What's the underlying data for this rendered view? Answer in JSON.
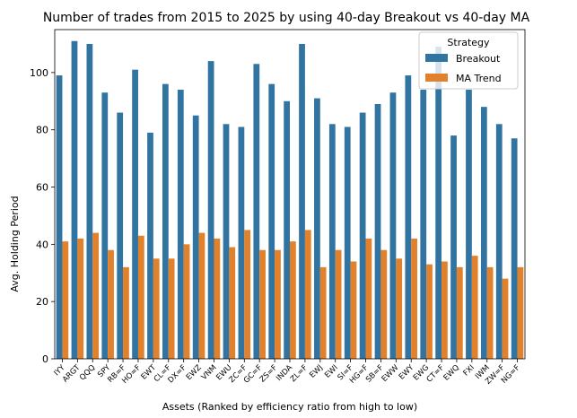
{
  "chart_data": {
    "type": "bar",
    "title": "Number of trades from 2015 to 2025 by using 40-day Breakout vs 40-day MA",
    "xlabel": "Assets (Ranked by efficiency ratio from high to low)",
    "ylabel": "Avg. Holding Period",
    "ylim": [
      0,
      115
    ],
    "yticks": [
      0,
      20,
      40,
      60,
      80,
      100
    ],
    "grid": false,
    "legend": {
      "title": "Strategy",
      "placement": "top-right"
    },
    "categories": [
      "IYY",
      "ARGT",
      "QQQ",
      "SPY",
      "RB=F",
      "HO=F",
      "EWT",
      "CL=F",
      "DX=F",
      "EWZ",
      "VNM",
      "EWU",
      "ZC=F",
      "GC=F",
      "ZS=F",
      "INDA",
      "ZL=F",
      "EWJ",
      "EWI",
      "SI=F",
      "HG=F",
      "SB=F",
      "EWW",
      "EWY",
      "EWG",
      "CT=F",
      "EWQ",
      "FXI",
      "IWM",
      "ZW=F",
      "NG=F"
    ],
    "series": [
      {
        "name": "Breakout",
        "color": "#3274a1",
        "values": [
          99,
          111,
          110,
          93,
          86,
          101,
          79,
          96,
          94,
          85,
          104,
          82,
          81,
          103,
          96,
          90,
          110,
          91,
          82,
          81,
          86,
          89,
          93,
          99,
          94,
          109,
          78,
          94,
          88,
          82,
          77
        ]
      },
      {
        "name": "MA Trend",
        "color": "#e1812c",
        "values": [
          41,
          42,
          44,
          38,
          32,
          43,
          35,
          35,
          40,
          44,
          42,
          39,
          45,
          38,
          38,
          41,
          45,
          32,
          38,
          34,
          42,
          38,
          35,
          42,
          33,
          34,
          32,
          36,
          32,
          28,
          32
        ]
      }
    ]
  }
}
